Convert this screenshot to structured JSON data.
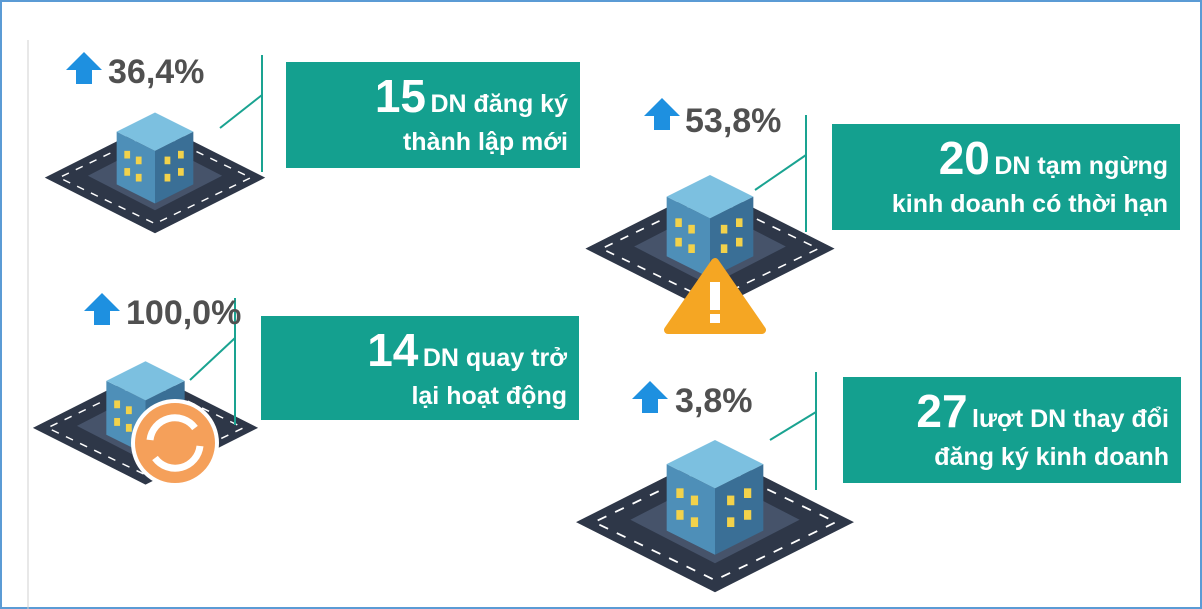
{
  "items": [
    {
      "growth": "36,4%",
      "number": "15",
      "line1": "DN đăng ký",
      "line2": "thành lập mới"
    },
    {
      "growth": "53,8%",
      "number": "20",
      "line1": "DN tạm ngừng",
      "line2": "kinh doanh có thời hạn"
    },
    {
      "growth": "100,0%",
      "number": "14",
      "line1": "DN quay trở",
      "line2": "lại hoạt động"
    },
    {
      "growth": "3,8%",
      "number": "27",
      "line1": "lượt DN thay đổi",
      "line2": "đăng ký kinh doanh"
    }
  ]
}
